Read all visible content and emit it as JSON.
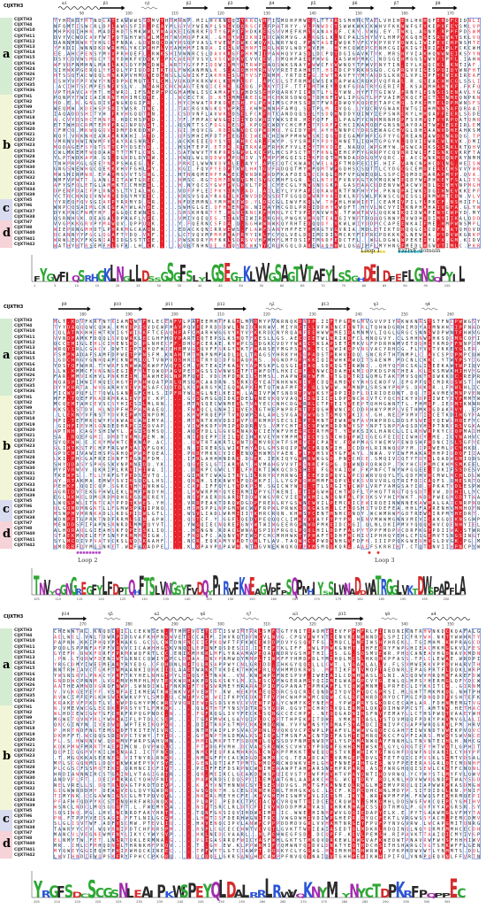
{
  "ref_label": "ClJXTH3",
  "groups": [
    {
      "letter": "a",
      "color": "#d4ecd2"
    },
    {
      "letter": "b",
      "color": "#f2f6d6"
    },
    {
      "letter": "c",
      "color": "#d9dcef"
    },
    {
      "letter": "d",
      "color": "#f6d3d8"
    }
  ],
  "sequence_names": [
    "ClJXTH3",
    "ClJXTH4",
    "ClJXTH10",
    "ClJXTH11",
    "ClJXTH12",
    "ClJXTH13",
    "ClJXTH14",
    "ClJXTH15",
    "ClJXTH16",
    "ClJXTH24",
    "ClJXTH26",
    "ClJXTH27",
    "ClJXTH35",
    "ClJXTH36",
    "ClJXTH1",
    "ClJXTH2",
    "ClJXTH9",
    "ClJXTH17",
    "ClJXTH18",
    "ClJXTH19",
    "ClJXTH20",
    "ClJXTH21",
    "ClJXTH22",
    "ClJXTH23",
    "ClJXTH25",
    "ClJXTH28",
    "ClJXTH29",
    "ClJXTH30",
    "ClJXTH31",
    "ClJXTH32",
    "ClJXTH33",
    "ClJXTH34",
    "ClJXTH39",
    "ClJXTH5",
    "ClJXTH6",
    "ClJXTH37",
    "ClJXTH38",
    "ClJXTH7",
    "ClJXTH8",
    "ClJXTH40",
    "ClJXTH41",
    "ClJXTH42"
  ],
  "group_sizes": [
    14,
    19,
    4,
    5
  ],
  "panels": [
    {
      "ss_labels": [
        "α1",
        "β1",
        "η1",
        "β2",
        "β3",
        "β4",
        "β5",
        "β6",
        "β7",
        "β8"
      ],
      "ruler": [
        "90",
        "100",
        "110",
        "120",
        "130",
        "140",
        "150",
        "160",
        "170"
      ],
      "annotations": [
        {
          "label": "Loop 1",
          "color": "#e8d64a"
        },
        {
          "label": "ExDxE domain",
          "color": "#27c1d9"
        }
      ],
      "logo_ticks": [
        "1",
        "5",
        "10",
        "15",
        "20",
        "25",
        "30",
        "35",
        "40",
        "45",
        "50",
        "55",
        "60",
        "65",
        "70",
        "75",
        "80",
        "85",
        "90",
        "95",
        "100"
      ],
      "logo_seq": "FYGVFIQSRHGKLNGLLDSSGSGFSLYLGSEGTKLVVGSAGTVTAFYLSSGHDEIDFEFLGNGQPYIL"
    },
    {
      "ss_labels": [
        "β9",
        "β10",
        "β11",
        "β12",
        "η2",
        "β13",
        "η3",
        "η4"
      ],
      "ruler": [
        "180",
        "190",
        "200",
        "210",
        "220",
        "230",
        "240",
        "250",
        "260"
      ],
      "annotations": [
        {
          "label": "Loop 2",
          "color": "#b64ac7"
        },
        {
          "label": "Loop 3",
          "color": "#e23030"
        }
      ],
      "logo_ticks": [
        "105",
        "110",
        "115",
        "120",
        "125",
        "130",
        "135",
        "140",
        "145",
        "150",
        "155",
        "160",
        "165",
        "170",
        "175",
        "180",
        "185",
        "190",
        "195",
        "200"
      ],
      "logo_seq": "TNVYQGNGREGFYLFDPTQHFTSLVNGSYFVDQYPIRVFKNEAGVPFPSQPMHIYSSLWNADDWATRGGLVKTDWSPAPFLA"
    },
    {
      "ss_labels": [
        "β14",
        "η5",
        "α2",
        "η6",
        "η7",
        "α3",
        "β15",
        "η8",
        "α4"
      ],
      "ruler": [
        "270",
        "280",
        "290",
        "300",
        "310",
        "320",
        "330",
        "340",
        "350"
      ],
      "annotations": [],
      "logo_ticks": [
        "205",
        "210",
        "215",
        "220",
        "225",
        "230",
        "235",
        "240",
        "245",
        "250",
        "255",
        "260",
        "265",
        "270",
        "275",
        "280",
        "285",
        "290",
        "295",
        "300",
        "305"
      ],
      "logo_seq": "YRGFSDCSCGSNLEAIPKWSPEYQLDALRRLRWVQKNYMIYNYCTDPKRFPQPPEC"
    }
  ]
}
